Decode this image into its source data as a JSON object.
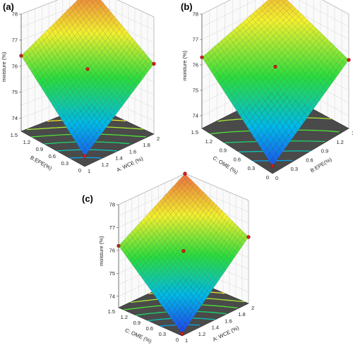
{
  "chart_data": [
    {
      "type": "surface3d",
      "panel_label": "(a)",
      "zlabel": "moisture  (%)",
      "xlabel": "A: WCE (%)",
      "ylabel": "B:EPE(%)",
      "x_ticks": [
        "1",
        "1.2",
        "1.4",
        "1.6",
        "1.8",
        "2"
      ],
      "y_ticks": [
        "0",
        "0.3",
        "0.6",
        "0.9",
        "1.2",
        "1.5"
      ],
      "z_ticks": [
        "74",
        "75",
        "76",
        "77",
        "78"
      ],
      "zlim": [
        73.5,
        78
      ],
      "corners": {
        "x_min_y_min": 73.9,
        "x_max_y_min": 76.2,
        "x_min_y_max": 76.4,
        "x_max_y_max": 78.0
      },
      "center": 76.0,
      "design_points": [
        {
          "x": 1,
          "y": 0,
          "z": 73.9
        },
        {
          "x": 2,
          "y": 0,
          "z": 76.2
        },
        {
          "x": 1,
          "y": 1.5,
          "z": 76.4
        },
        {
          "x": 2,
          "y": 1.5,
          "z": 78.0
        },
        {
          "x": 1.5,
          "y": 0.75,
          "z": 76.0
        }
      ]
    },
    {
      "type": "surface3d",
      "panel_label": "(b)",
      "zlabel": "moisture  (%)",
      "xlabel": "B:EPE(%)",
      "ylabel": "C: OME (%)",
      "x_ticks": [
        "0",
        "0.3",
        "0.6",
        "0.9",
        "1.2",
        "1.5"
      ],
      "y_ticks": [
        "0",
        "0.3",
        "0.6",
        "0.9",
        "1.2",
        "1.5"
      ],
      "z_ticks": [
        "74",
        "75",
        "76",
        "77",
        "78"
      ],
      "zlim": [
        73.5,
        78
      ],
      "corners": {
        "x_min_y_min": 73.8,
        "x_max_y_min": 76.2,
        "x_min_y_max": 76.3,
        "x_max_y_max": 77.4
      },
      "center": 76.0,
      "design_points": [
        {
          "x": 0,
          "y": 0,
          "z": 73.8
        },
        {
          "x": 1.5,
          "y": 0,
          "z": 76.2
        },
        {
          "x": 0,
          "y": 1.5,
          "z": 76.3
        },
        {
          "x": 0.75,
          "y": 0.75,
          "z": 76.0
        }
      ]
    },
    {
      "type": "surface3d",
      "panel_label": "(c)",
      "zlabel": "moisture  (%)",
      "xlabel": "A: WCE (%)",
      "ylabel": "C: OME (%)",
      "x_ticks": [
        "1",
        "1.2",
        "1.4",
        "1.6",
        "1.8",
        "2"
      ],
      "y_ticks": [
        "0",
        "0.3",
        "0.6",
        "0.9",
        "1.2",
        "1.5"
      ],
      "z_ticks": [
        "74",
        "75",
        "76",
        "77",
        "78"
      ],
      "zlim": [
        73.5,
        78
      ],
      "corners": {
        "x_min_y_min": 73.6,
        "x_max_y_min": 76.4,
        "x_min_y_max": 76.2,
        "x_max_y_max": 78.0
      },
      "center": 75.9,
      "design_points": [
        {
          "x": 1,
          "y": 0,
          "z": 73.6
        },
        {
          "x": 2,
          "y": 0,
          "z": 76.4
        },
        {
          "x": 1,
          "y": 1.5,
          "z": 76.2
        },
        {
          "x": 2,
          "y": 1.5,
          "z": 78.0
        },
        {
          "x": 1.5,
          "y": 0.75,
          "z": 75.9
        }
      ]
    }
  ]
}
